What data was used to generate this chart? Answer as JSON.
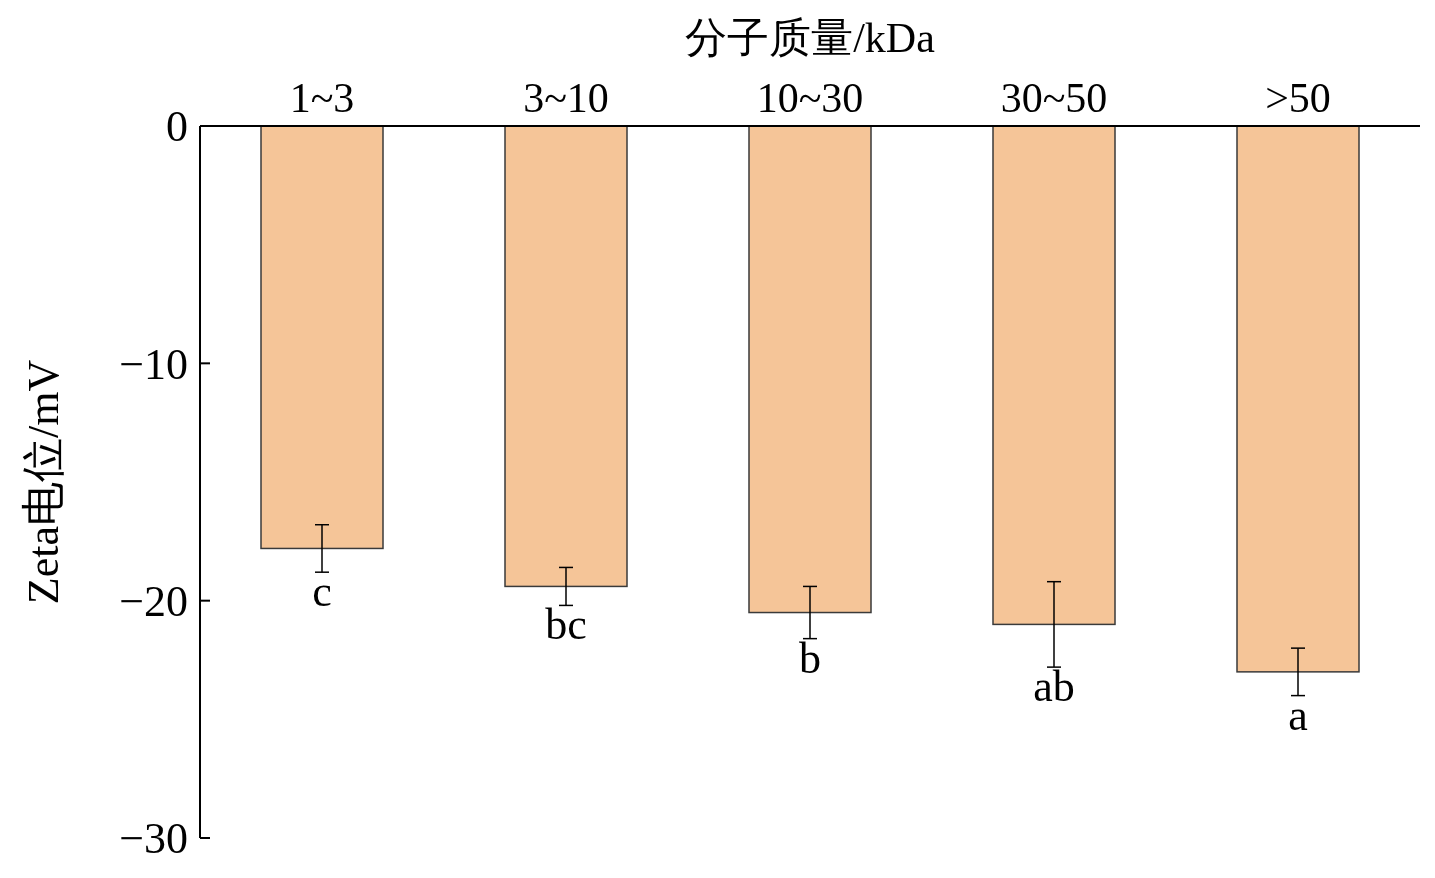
{
  "chart_data": {
    "type": "bar",
    "xlabel": "分子质量/kDa",
    "ylabel": "Zeta电位/mV",
    "categories": [
      "1~3",
      "3~10",
      "10~30",
      "30~50",
      ">50"
    ],
    "values": [
      -17.8,
      -19.4,
      -20.5,
      -21.0,
      -23.0
    ],
    "errors": [
      1.0,
      0.8,
      1.1,
      1.8,
      1.0
    ],
    "color": "#f5c598",
    "ylim": [
      -30,
      0
    ],
    "yticks": [
      0,
      {
        "value": -10,
        "label": "−10"
      },
      {
        "value": -20,
        "label": "−20"
      },
      {
        "value": -30,
        "label": "−30"
      }
    ],
    "annotations": [
      "c",
      "bc",
      "b",
      "ab",
      "a"
    ]
  }
}
